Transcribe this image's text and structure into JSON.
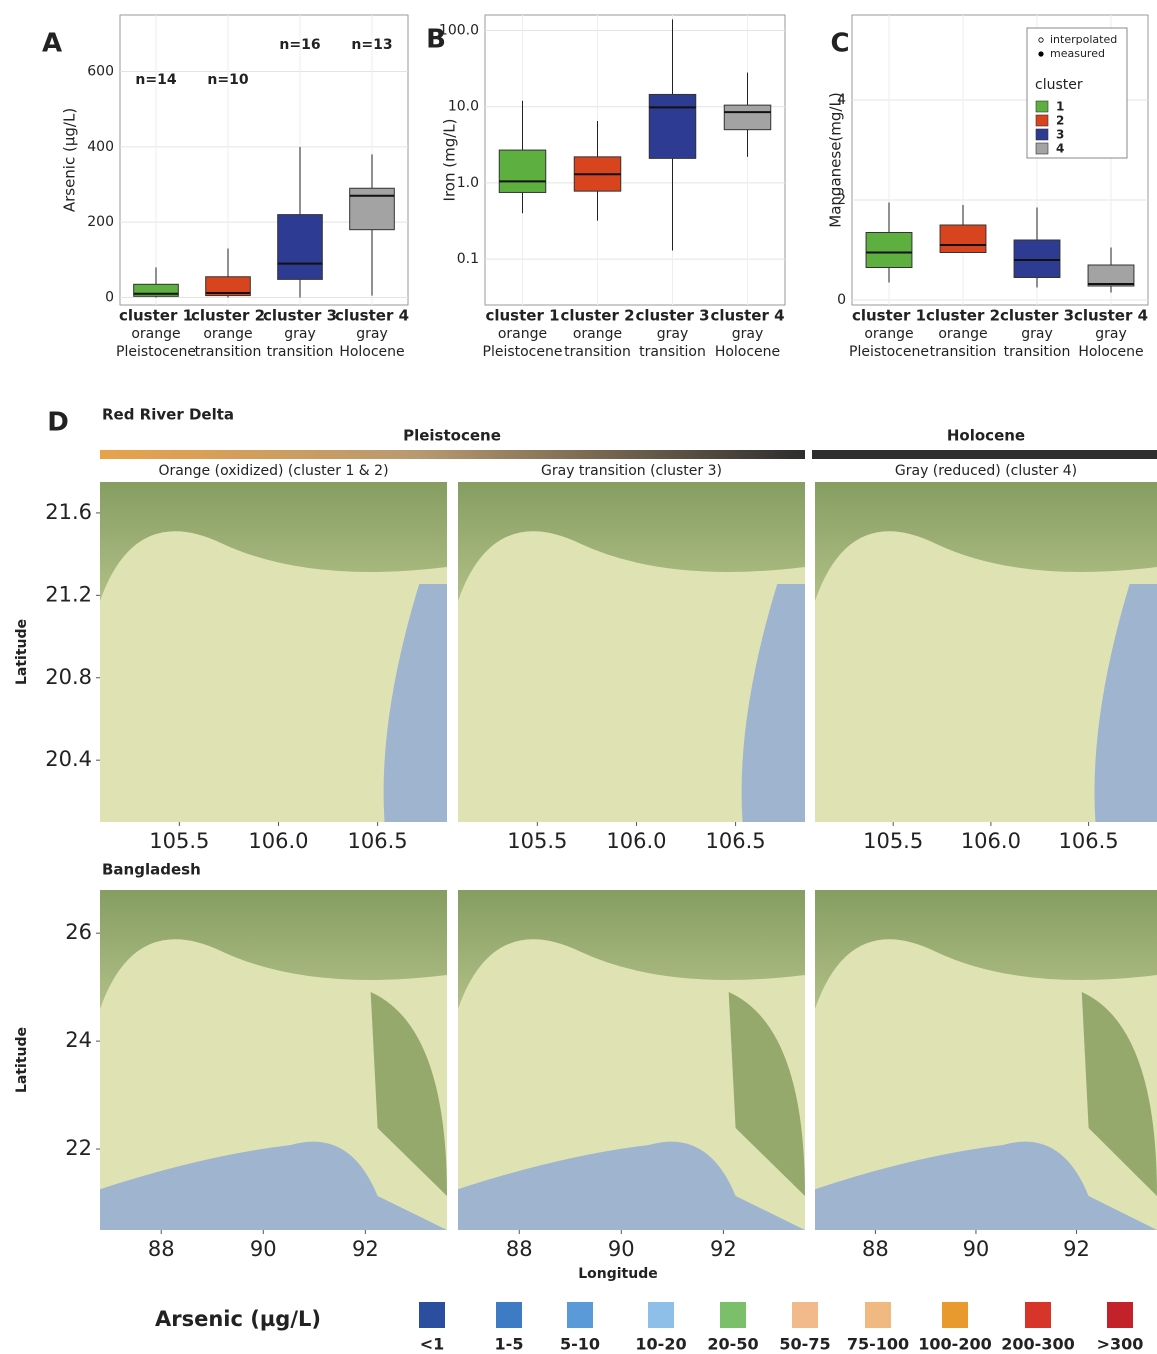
{
  "chart_data": [
    {
      "type": "box",
      "panel_label": "A",
      "ylabel": "Arsenic (µg/L)",
      "categories": [
        "cluster 1",
        "cluster 2",
        "cluster 3",
        "cluster 4"
      ],
      "sediment": [
        "orange",
        "orange",
        "gray",
        "gray"
      ],
      "age": [
        "Pleistocene",
        "transition",
        "transition",
        "Holocene"
      ],
      "annotations": [
        "n=14",
        "n=10",
        "n=16",
        "n=13"
      ],
      "colors": [
        "#5db040",
        "#d8441e",
        "#2e3b93",
        "#a3a3a3"
      ],
      "boxes": [
        {
          "low": 0,
          "q1": 3,
          "median": 10,
          "q3": 35,
          "high": 80
        },
        {
          "low": 0,
          "q1": 5,
          "median": 12,
          "q3": 55,
          "high": 130
        },
        {
          "low": 0,
          "q1": 48,
          "median": 90,
          "q3": 220,
          "high": 400
        },
        {
          "low": 5,
          "q1": 180,
          "median": 270,
          "q3": 290,
          "high": 380
        }
      ],
      "ylim": [
        -20,
        750
      ],
      "yticks": [
        0,
        200,
        400,
        600
      ],
      "grid": true
    },
    {
      "type": "box",
      "panel_label": "B",
      "ylabel": "Iron (mg/L)",
      "log_scale": true,
      "categories": [
        "cluster 1",
        "cluster 2",
        "cluster 3",
        "cluster 4"
      ],
      "sediment": [
        "orange",
        "orange",
        "gray",
        "gray"
      ],
      "age": [
        "Pleistocene",
        "transition",
        "transition",
        "Holocene"
      ],
      "colors": [
        "#5db040",
        "#d8441e",
        "#2e3b93",
        "#a3a3a3"
      ],
      "boxes": [
        {
          "low": 0.4,
          "q1": 0.75,
          "median": 1.05,
          "q3": 2.7,
          "high": 12
        },
        {
          "low": 0.32,
          "q1": 0.78,
          "median": 1.3,
          "q3": 2.2,
          "high": 6.5
        },
        {
          "low": 0.13,
          "q1": 2.1,
          "median": 9.8,
          "q3": 14.5,
          "high": 140
        },
        {
          "low": 2.2,
          "q1": 5,
          "median": 8.5,
          "q3": 10.5,
          "high": 28
        }
      ],
      "ylim": [
        0.025,
        160
      ],
      "yticks": [
        0.1,
        {
          "value": 1,
          "label": "1.0"
        },
        {
          "value": 10,
          "label": "10.0"
        },
        {
          "value": 100,
          "label": "100.0"
        }
      ],
      "grid": true
    },
    {
      "type": "box",
      "panel_label": "C",
      "ylabel": "Manganese(mg/L)",
      "categories": [
        "cluster 1",
        "cluster 2",
        "cluster 3",
        "cluster 4"
      ],
      "sediment": [
        "orange",
        "orange",
        "gray",
        "gray"
      ],
      "age": [
        "Pleistocene",
        "transition",
        "transition",
        "Holocene"
      ],
      "colors": [
        "#5db040",
        "#d8441e",
        "#2e3b93",
        "#a3a3a3"
      ],
      "boxes": [
        {
          "low": 0.35,
          "q1": 0.65,
          "median": 0.95,
          "q3": 1.35,
          "high": 1.95
        },
        {
          "low": 0.95,
          "q1": 0.95,
          "median": 1.1,
          "q3": 1.5,
          "high": 1.9
        },
        {
          "low": 0.25,
          "q1": 0.45,
          "median": 0.8,
          "q3": 1.2,
          "high": 1.85
        },
        {
          "low": 0.15,
          "q1": 0.28,
          "median": 0.32,
          "q3": 0.7,
          "high": 1.05
        }
      ],
      "ylim": [
        -0.1,
        5.7
      ],
      "yticks": [
        0,
        2,
        4
      ],
      "grid": true,
      "point_legend": [
        "interpolated",
        "measured"
      ],
      "legend_title": "cluster",
      "legend": [
        "1",
        "2",
        "3",
        "4"
      ]
    },
    {
      "type": "map",
      "panel_label": "D",
      "eras": [
        "Pleistocene",
        "Holocene"
      ],
      "panel_titles": [
        "Orange (oxidized) (cluster 1 & 2)",
        "Gray transition (cluster 3)",
        "Gray (reduced) (cluster 4)"
      ],
      "regions": [
        {
          "name": "Red River Delta",
          "ylabel": "Latitude",
          "xlim": [
            105.1,
            106.85
          ],
          "ylim": [
            20.1,
            21.75
          ],
          "xticks": [
            105.5,
            {
              "value": 106,
              "label": "106.0"
            },
            106.5
          ],
          "yticks": [
            20.4,
            20.8,
            21.2,
            21.6
          ]
        },
        {
          "name": "Bangladesh",
          "ylabel": "Latitude",
          "xlabel": "Longitude",
          "xlim": [
            86.8,
            93.6
          ],
          "ylim": [
            20.5,
            26.8
          ],
          "xticks": [
            88,
            90,
            92
          ],
          "yticks": [
            22,
            24,
            26
          ]
        }
      ],
      "legend_title": "Arsenic (µg/L)",
      "legend": [
        {
          "label": "<1",
          "color": "#2b4f9e"
        },
        {
          "label": "1-5",
          "color": "#3d7cc4"
        },
        {
          "label": "5-10",
          "color": "#5a9ad8"
        },
        {
          "label": "10-20",
          "color": "#8ebfe8"
        },
        {
          "label": "20-50",
          "color": "#7bbf6a"
        },
        {
          "label": "50-75",
          "color": "#f2b98a"
        },
        {
          "label": "75-100",
          "color": "#f0b982"
        },
        {
          "label": "100-200",
          "color": "#e89a2e"
        },
        {
          "label": "200-300",
          "color": "#d8352a"
        },
        {
          "label": ">300",
          "color": "#c4222a"
        }
      ]
    }
  ]
}
